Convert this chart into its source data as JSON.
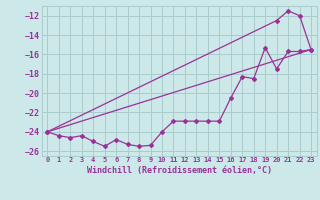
{
  "xlabel": "Windchill (Refroidissement éolien,°C)",
  "ylabel": "",
  "bg_color": "#cce8e8",
  "grid_color": "#aacccc",
  "line_color": "#993399",
  "xlim": [
    -0.5,
    23.5
  ],
  "ylim": [
    -26.5,
    -11.0
  ],
  "yticks": [
    -12,
    -14,
    -16,
    -18,
    -20,
    -22,
    -24,
    -26
  ],
  "xticks": [
    0,
    1,
    2,
    3,
    4,
    5,
    6,
    7,
    8,
    9,
    10,
    11,
    12,
    13,
    14,
    15,
    16,
    17,
    18,
    19,
    20,
    21,
    22,
    23
  ],
  "line1_x": [
    0,
    1,
    2,
    3,
    4,
    5,
    6,
    7,
    8,
    9,
    10,
    11,
    12,
    13,
    14,
    15,
    16,
    17,
    18,
    19,
    20,
    21,
    22,
    23
  ],
  "line1_y": [
    -24.0,
    -24.4,
    -24.6,
    -24.4,
    -25.0,
    -25.5,
    -24.8,
    -25.3,
    -25.5,
    -25.4,
    -24.0,
    -22.9,
    -22.9,
    -22.9,
    -22.9,
    -22.9,
    -20.5,
    -18.3,
    -18.5,
    -15.3,
    -17.5,
    -15.7,
    -15.7,
    -15.5
  ],
  "line2_x": [
    0,
    23
  ],
  "line2_y": [
    -24.0,
    -15.5
  ],
  "line3_x": [
    0,
    20,
    21,
    22,
    23
  ],
  "line3_y": [
    -24.0,
    -12.5,
    -11.5,
    -12.0,
    -15.5
  ]
}
